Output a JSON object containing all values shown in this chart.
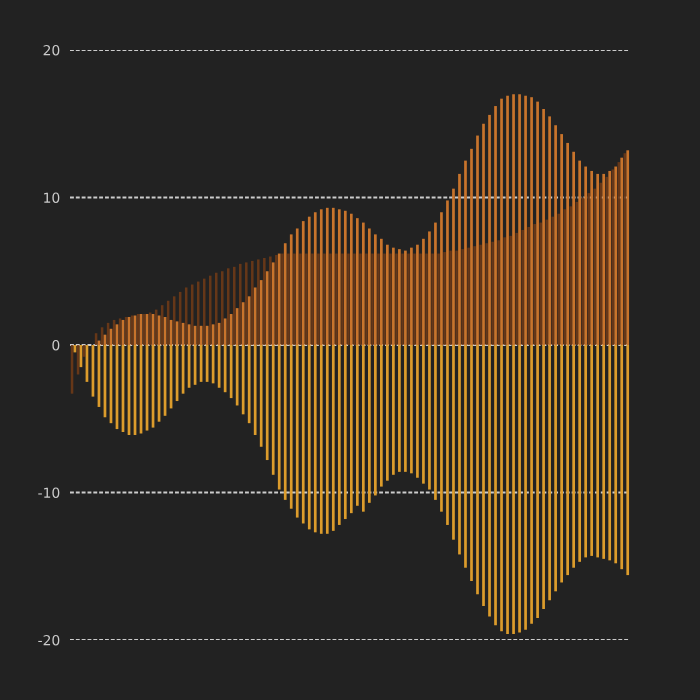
{
  "chart_data": {
    "type": "bar",
    "categories": [
      null,
      null,
      null,
      null,
      null,
      null,
      null,
      null,
      null,
      null,
      null,
      null,
      null,
      null,
      null,
      null,
      null,
      null,
      null,
      null,
      null,
      null,
      null,
      null,
      null,
      null,
      null,
      null,
      null,
      null,
      null,
      null,
      null,
      null,
      null,
      null,
      null,
      null,
      null,
      null,
      null,
      null,
      null,
      null,
      null,
      null,
      null,
      null,
      null,
      null,
      null,
      null,
      null,
      null,
      null,
      null,
      null,
      null,
      null,
      null,
      null,
      null,
      null,
      null,
      null,
      null,
      null,
      null,
      null,
      null,
      null,
      null,
      null,
      null,
      null,
      null,
      null,
      null,
      null,
      null,
      null,
      null,
      null,
      null,
      null,
      null,
      null,
      null,
      null,
      null,
      null,
      null,
      null
    ],
    "series": [
      {
        "color": "#6e3a17",
        "values": [
          -3.3,
          -2.0,
          -0.8,
          null,
          0.8,
          1.2,
          1.5,
          1.7,
          1.8,
          1.9,
          2.0,
          2.1,
          2.1,
          2.2,
          2.4,
          2.7,
          3.0,
          3.3,
          3.6,
          3.9,
          4.1,
          4.3,
          4.5,
          4.7,
          4.9,
          5.0,
          5.2,
          5.3,
          5.5,
          5.6,
          5.7,
          5.8,
          5.9,
          6.0,
          6.1,
          6.2,
          6.2,
          6.2,
          6.2,
          6.2,
          6.2,
          6.2,
          6.2,
          6.2,
          6.2,
          6.2,
          6.2,
          6.2,
          6.2,
          6.2,
          6.2,
          6.2,
          6.2,
          6.2,
          6.2,
          6.2,
          6.2,
          6.2,
          6.2,
          6.2,
          6.2,
          6.2,
          6.3,
          6.4,
          6.4,
          6.5,
          6.6,
          6.7,
          6.8,
          6.9,
          7.0,
          7.1,
          7.3,
          7.4,
          7.6,
          7.8,
          8.0,
          8.2,
          8.3,
          8.5,
          8.7,
          8.9,
          9.2,
          9.4,
          9.7,
          10.0,
          10.3,
          10.6,
          11.0,
          11.4,
          11.9,
          12.4,
          13.0
        ]
      },
      {
        "color": "#c8742c",
        "values": [
          null,
          null,
          null,
          0.0,
          0.3,
          0.7,
          1.1,
          1.4,
          1.7,
          1.9,
          2.0,
          2.1,
          2.1,
          2.1,
          2.0,
          1.9,
          1.7,
          1.6,
          1.5,
          1.4,
          1.3,
          1.3,
          1.3,
          1.4,
          1.5,
          1.8,
          2.1,
          2.5,
          2.9,
          3.3,
          3.9,
          4.4,
          5.0,
          5.6,
          6.2,
          6.9,
          7.5,
          7.9,
          8.4,
          8.7,
          9.0,
          9.2,
          9.3,
          9.3,
          9.2,
          9.1,
          8.9,
          8.6,
          8.3,
          7.9,
          7.5,
          7.2,
          6.8,
          6.6,
          6.5,
          6.4,
          6.6,
          6.8,
          7.2,
          7.7,
          8.3,
          9.0,
          9.8,
          10.6,
          11.6,
          12.5,
          13.3,
          14.2,
          15.0,
          15.6,
          16.2,
          16.7,
          16.9,
          17.0,
          17.0,
          16.9,
          16.8,
          16.5,
          16.0,
          15.5,
          14.9,
          14.3,
          13.7,
          13.1,
          12.5,
          12.1,
          11.8,
          11.6,
          11.6,
          11.8,
          12.1,
          12.7,
          13.2
        ]
      },
      {
        "color": "#dc9c2c",
        "values": [
          -0.5,
          -1.5,
          -2.5,
          -3.5,
          -4.2,
          -4.9,
          -5.3,
          -5.7,
          -5.9,
          -6.1,
          -6.1,
          -6.0,
          -5.8,
          -5.6,
          -5.2,
          -4.8,
          -4.3,
          -3.8,
          -3.3,
          -2.9,
          -2.7,
          -2.5,
          -2.5,
          -2.6,
          -2.9,
          -3.2,
          -3.6,
          -4.1,
          -4.7,
          -5.3,
          -6.1,
          -6.9,
          -7.8,
          -8.8,
          -9.8,
          -10.5,
          -11.1,
          -11.7,
          -12.1,
          -12.5,
          -12.7,
          -12.8,
          -12.8,
          -12.6,
          -12.2,
          -11.8,
          -11.4,
          -10.9,
          -11.3,
          -10.7,
          -10.2,
          -9.6,
          -9.2,
          -8.8,
          -8.6,
          -8.6,
          -8.7,
          -9.0,
          -9.4,
          -9.8,
          -10.5,
          -11.3,
          -12.2,
          -13.2,
          -14.2,
          -15.1,
          -16.0,
          -16.9,
          -17.7,
          -18.4,
          -19.0,
          -19.4,
          -19.6,
          -19.6,
          -19.5,
          -19.3,
          -18.9,
          -18.5,
          -17.9,
          -17.3,
          -16.7,
          -16.1,
          -15.6,
          -15.1,
          -14.7,
          -14.4,
          -14.3,
          -14.4,
          -14.5,
          -14.6,
          -14.8,
          -15.2,
          -15.6
        ]
      }
    ],
    "ylim": [
      -20,
      20
    ],
    "yticks": [
      -20,
      -10,
      0,
      10,
      20
    ],
    "grid": "y"
  }
}
